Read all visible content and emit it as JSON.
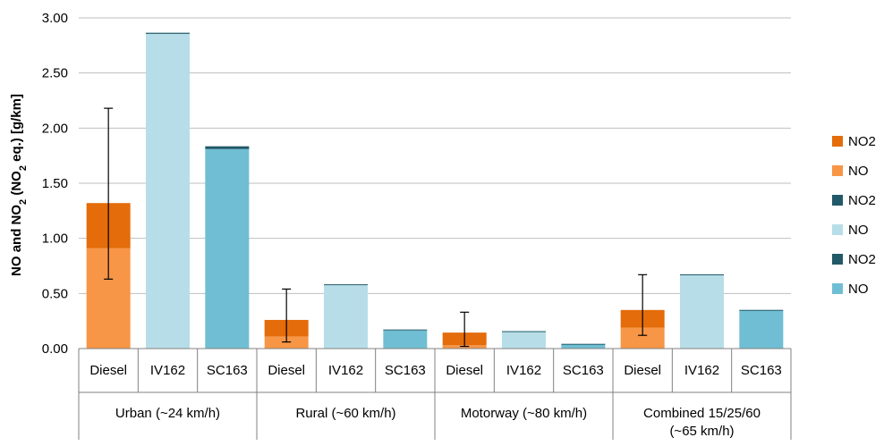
{
  "chart_data": {
    "type": "bar",
    "stacked": true,
    "ylabel_parts": [
      "NO and NO",
      "2",
      " (NO",
      "2",
      " eq.) [g/km]"
    ],
    "ylim": [
      0,
      3
    ],
    "yticks": [
      "0.00",
      "0.50",
      "1.00",
      "1.50",
      "2.00",
      "2.50",
      "3.00"
    ],
    "ytick_values": [
      0,
      0.5,
      1,
      1.5,
      2,
      2.5,
      3
    ],
    "grid": true,
    "legend_position": "right",
    "groups": [
      {
        "label_lines": [
          "Urban (~24 km/h)"
        ],
        "categories": [
          "Diesel",
          "IV162",
          "SC163"
        ]
      },
      {
        "label_lines": [
          "Rural (~60 km/h)"
        ],
        "categories": [
          "Diesel",
          "IV162",
          "SC163"
        ]
      },
      {
        "label_lines": [
          "Motorway (~80 km/h)"
        ],
        "categories": [
          "Diesel",
          "IV162",
          "SC163"
        ]
      },
      {
        "label_lines": [
          "Combined 15/25/60",
          "(~65 km/h)"
        ],
        "categories": [
          "Diesel",
          "IV162",
          "SC163"
        ]
      }
    ],
    "bars": [
      {
        "group": 0,
        "category": "Diesel",
        "no": 0.91,
        "no2": 0.41,
        "colors": {
          "no": "#F79646",
          "no2": "#E46C0A"
        },
        "error": [
          0.63,
          2.18
        ]
      },
      {
        "group": 0,
        "category": "IV162",
        "no": 2.855,
        "no2": 0.01,
        "colors": {
          "no": "#B7DEE8",
          "no2": "#215968"
        }
      },
      {
        "group": 0,
        "category": "SC163",
        "no": 1.81,
        "no2": 0.025,
        "colors": {
          "no": "#6FBED3",
          "no2": "#215968"
        }
      },
      {
        "group": 1,
        "category": "Diesel",
        "no": 0.11,
        "no2": 0.15,
        "colors": {
          "no": "#F79646",
          "no2": "#E46C0A"
        },
        "error": [
          0.06,
          0.54
        ]
      },
      {
        "group": 1,
        "category": "IV162",
        "no": 0.575,
        "no2": 0.008,
        "colors": {
          "no": "#B7DEE8",
          "no2": "#215968"
        }
      },
      {
        "group": 1,
        "category": "SC163",
        "no": 0.165,
        "no2": 0.008,
        "colors": {
          "no": "#6FBED3",
          "no2": "#215968"
        }
      },
      {
        "group": 2,
        "category": "Diesel",
        "no": 0.03,
        "no2": 0.115,
        "colors": {
          "no": "#F79646",
          "no2": "#E46C0A"
        },
        "error": [
          0.02,
          0.33
        ]
      },
      {
        "group": 2,
        "category": "IV162",
        "no": 0.152,
        "no2": 0.006,
        "colors": {
          "no": "#B7DEE8",
          "no2": "#215968"
        }
      },
      {
        "group": 2,
        "category": "SC163",
        "no": 0.04,
        "no2": 0.003,
        "colors": {
          "no": "#6FBED3",
          "no2": "#215968"
        }
      },
      {
        "group": 3,
        "category": "Diesel",
        "no": 0.19,
        "no2": 0.16,
        "colors": {
          "no": "#F79646",
          "no2": "#E46C0A"
        },
        "error": [
          0.12,
          0.67
        ]
      },
      {
        "group": 3,
        "category": "IV162",
        "no": 0.665,
        "no2": 0.008,
        "colors": {
          "no": "#B7DEE8",
          "no2": "#215968"
        }
      },
      {
        "group": 3,
        "category": "SC163",
        "no": 0.345,
        "no2": 0.006,
        "colors": {
          "no": "#6FBED3",
          "no2": "#215968"
        }
      }
    ],
    "legend": [
      {
        "label": "NO2",
        "color": "#E46C0A"
      },
      {
        "label": "NO",
        "color": "#F79646"
      },
      {
        "label": "NO2",
        "color": "#215968"
      },
      {
        "label": "NO",
        "color": "#B7DEE8"
      },
      {
        "label": "NO2",
        "color": "#215968"
      },
      {
        "label": "NO",
        "color": "#6FBED3"
      }
    ],
    "colors": {
      "grid": "#BFBFBF",
      "axis": "#808080",
      "error_bar": "#000000"
    }
  }
}
